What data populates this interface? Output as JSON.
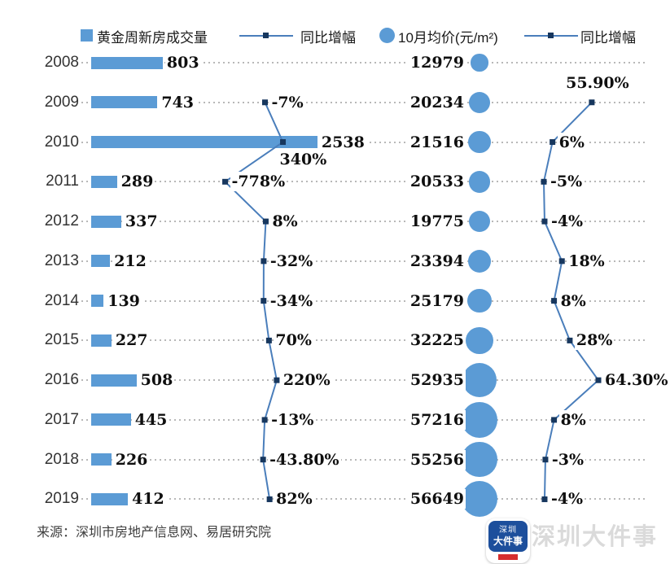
{
  "legend": {
    "items": [
      {
        "label": "黄金周新房成交量",
        "swatch": "bar-square"
      },
      {
        "label": "同比增幅",
        "swatch": "line-marker"
      },
      {
        "label": "10月均价(元/m²)",
        "swatch": "circle"
      },
      {
        "label": "同比增幅",
        "swatch": "line-marker"
      }
    ]
  },
  "source": "来源：深圳市房地产信息网、易居研究院",
  "watermark": {
    "text": "深圳大件事",
    "logo_line1": "深圳",
    "logo_line2": "大件事"
  },
  "colors": {
    "bar": "#5b9bd5",
    "bubble": "#5b9bd5",
    "line": "#4a7ebb",
    "marker": "#17375e",
    "grid": "#b8b8b8",
    "value_text": "#0f0f0f",
    "logo_blue": "#1d4f9c",
    "logo_red": "#d62e2e",
    "watermark_gray": "#dadada"
  },
  "chart_data": {
    "type": "composite",
    "subtypes": [
      "bar",
      "line",
      "bubble",
      "line"
    ],
    "categories": [
      "2008",
      "2009",
      "2010",
      "2011",
      "2012",
      "2013",
      "2014",
      "2015",
      "2016",
      "2017",
      "2018",
      "2019"
    ],
    "series": [
      {
        "name": "黄金周新房成交量",
        "type": "bar",
        "values": [
          803,
          743,
          2538,
          289,
          337,
          212,
          139,
          227,
          508,
          445,
          226,
          412
        ],
        "labels": [
          "803",
          "743",
          "2538",
          "289",
          "337",
          "212",
          "139",
          "227",
          "508",
          "445",
          "226",
          "412"
        ]
      },
      {
        "name": "同比增幅",
        "type": "line",
        "axis": "volume-growth",
        "values": [
          null,
          -7,
          340,
          -778,
          8,
          -32,
          -34,
          70,
          220,
          -13,
          -43.8,
          82
        ],
        "labels": [
          "",
          "-7%",
          "340%",
          "-778%",
          "8%",
          "-32%",
          "-34%",
          "70%",
          "220%",
          "-13%",
          "-43.80%",
          "82%"
        ]
      },
      {
        "name": "10月均价(元/m²)",
        "type": "bubble",
        "values": [
          12979,
          20234,
          21516,
          20533,
          19775,
          23394,
          25179,
          32225,
          52935,
          57216,
          55256,
          56649
        ],
        "labels": [
          "12979",
          "20234",
          "21516",
          "20533",
          "19775",
          "23394",
          "25179",
          "32225",
          "52935",
          "57216",
          "55256",
          "56649"
        ]
      },
      {
        "name": "同比增幅",
        "type": "line",
        "axis": "price-growth",
        "values": [
          null,
          55.9,
          6,
          -5,
          -4,
          18,
          8,
          28,
          64.3,
          8,
          -3,
          -4
        ],
        "labels": [
          "",
          "55.90%",
          "6%",
          "-5%",
          "-4%",
          "18%",
          "8%",
          "28%",
          "64.30%",
          "8%",
          "-3%",
          "-4%"
        ]
      }
    ],
    "layout_hints": {
      "orientation": "horizontal-rows",
      "legend_position": "top",
      "grid": "dotted-horizontal-per-row",
      "line_points_start_at": "2009",
      "volume_growth_label_below": "2010",
      "price_growth_label_above": "2009"
    }
  }
}
